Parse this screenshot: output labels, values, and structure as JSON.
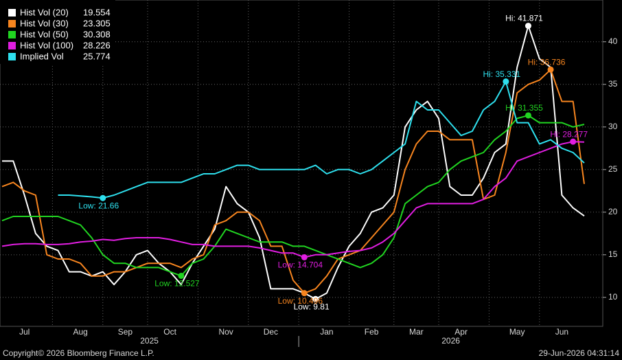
{
  "chart_data": {
    "type": "line",
    "categories": [
      null,
      null,
      "Jul",
      null,
      null,
      null,
      null,
      "Aug",
      null,
      null,
      null,
      "Sep",
      null,
      null,
      null,
      "Oct",
      null,
      null,
      null,
      null,
      "Nov",
      null,
      null,
      null,
      "Dec",
      null,
      null,
      null,
      null,
      "Jan",
      null,
      null,
      null,
      "Feb",
      null,
      null,
      null,
      "Mar",
      null,
      null,
      null,
      "Apr",
      null,
      null,
      null,
      null,
      "May",
      null,
      null,
      null,
      "Jun",
      null,
      null
    ],
    "x_group_labels": [
      "2025",
      "2026"
    ],
    "ylim": [
      6.6,
      44.9
    ],
    "yticks": [
      10,
      15,
      20,
      25,
      30,
      35,
      40
    ],
    "grid": true,
    "legend": "top-left",
    "footer_left": "Copyright© 2026 Bloomberg Finance L.P.",
    "footer_right": "29-Jun-2026 04:31:14",
    "series": [
      {
        "name": "Hist Vol (20)",
        "color": "#ffffff",
        "values": [
          26,
          26,
          22,
          17.5,
          16,
          15.5,
          13,
          13,
          12.5,
          13,
          11.5,
          13,
          15,
          15.5,
          14,
          13,
          11.5,
          14,
          16,
          18,
          23,
          21,
          20,
          17,
          11,
          11,
          11,
          10.5,
          9.81,
          10.5,
          13.5,
          16,
          17.5,
          20,
          20.5,
          22,
          30,
          32,
          33,
          31,
          23,
          22,
          22,
          24,
          27,
          28,
          37,
          41.871,
          38,
          37,
          22,
          20.5,
          19.554
        ],
        "extremes": [
          {
            "label": "Hi: 41.871",
            "value": 41.871,
            "kind": "hi"
          },
          {
            "label": "Low: 9.81",
            "value": 9.81,
            "kind": "low"
          }
        ]
      },
      {
        "name": "Hist Vol (30)",
        "color": "#f7851f",
        "values": [
          23,
          23.5,
          22.5,
          22,
          15,
          14.5,
          14.5,
          14,
          12.5,
          12.5,
          13,
          13,
          13.5,
          14,
          14,
          14,
          13.5,
          14.5,
          15,
          18.5,
          19,
          20,
          20,
          19,
          16,
          16,
          12,
          10.496,
          11,
          12.5,
          14.5,
          15,
          15.5,
          17,
          18.5,
          20,
          25,
          28,
          29.5,
          29.5,
          28.5,
          28.5,
          28.5,
          21.5,
          22,
          27,
          34,
          35,
          35.5,
          36.736,
          33,
          33,
          23.305
        ],
        "extremes": [
          {
            "label": "Hi: 36.736",
            "value": 36.736,
            "kind": "hi"
          },
          {
            "label": "Low: 10.496",
            "value": 10.496,
            "kind": "low"
          }
        ]
      },
      {
        "name": "Hist Vol (50)",
        "color": "#21d521",
        "values": [
          19,
          19.5,
          19.5,
          19.5,
          19.5,
          19.5,
          19,
          18.5,
          17,
          15,
          14,
          14,
          13.5,
          13.5,
          13.5,
          13,
          12.527,
          14,
          14.5,
          16,
          18,
          17.5,
          17,
          16.5,
          16.5,
          16.5,
          16,
          16,
          15.5,
          15,
          14.5,
          14,
          13.5,
          14,
          15,
          17,
          21,
          22,
          23,
          23.5,
          25,
          26,
          26.5,
          27,
          28.5,
          29.5,
          31,
          31.355,
          30.5,
          30.5,
          30.5,
          30,
          30.308
        ],
        "extremes": [
          {
            "label": "Hi: 31.355",
            "value": 31.355,
            "kind": "hi"
          },
          {
            "label": "Low: 12.527",
            "value": 12.527,
            "kind": "low"
          }
        ]
      },
      {
        "name": "Hist Vol (100)",
        "color": "#e11ee1",
        "values": [
          16,
          16.2,
          16.3,
          16.3,
          16.2,
          16.2,
          16.3,
          16.5,
          16.6,
          16.8,
          16.7,
          16.9,
          17,
          17,
          17,
          16.8,
          16.5,
          16.2,
          16.2,
          16,
          16,
          16,
          16,
          15.8,
          15.5,
          15.2,
          15.2,
          14.704,
          15,
          15,
          15.2,
          15.4,
          15.5,
          15.8,
          16.5,
          17.5,
          19,
          20.5,
          21,
          21,
          21,
          21,
          21,
          21.5,
          23,
          24,
          26,
          26.5,
          27,
          27.5,
          28,
          28.277,
          28.226
        ],
        "extremes": [
          {
            "label": "Hi: 28.277",
            "value": 28.277,
            "kind": "hi"
          },
          {
            "label": "Low: 14.704",
            "value": 14.704,
            "kind": "low"
          }
        ]
      },
      {
        "name": "Implied Vol",
        "color": "#2ee0ee",
        "values": [
          null,
          null,
          null,
          null,
          null,
          22,
          22,
          21.9,
          21.8,
          21.66,
          22,
          22.5,
          23,
          23.5,
          23.5,
          23.5,
          23.5,
          24,
          24.5,
          24.5,
          25,
          25.5,
          25.5,
          25,
          25,
          25,
          25,
          25,
          25.5,
          24.5,
          25,
          25,
          24.5,
          25,
          26,
          27,
          28,
          33,
          32,
          32,
          30.5,
          29,
          29.5,
          32,
          33,
          35.331,
          30.5,
          30.5,
          28,
          28.5,
          27.5,
          27,
          25.774
        ],
        "extremes": [
          {
            "label": "Hi: 35.331",
            "value": 35.331,
            "kind": "hi"
          },
          {
            "label": "Low: 21.66",
            "value": 21.66,
            "kind": "low"
          }
        ]
      }
    ]
  }
}
